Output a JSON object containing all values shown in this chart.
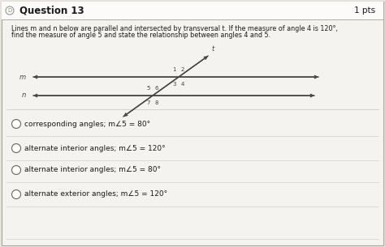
{
  "title": "Question 13",
  "pts": "1 pts",
  "bg_color": "#e8e4dc",
  "box_color": "#f5f3ef",
  "header_color": "#ffffff",
  "problem_text_line1": "Lines m and n below are parallel and intersected by transversal t. If the measure of angle 4 is 120°,",
  "problem_text_line2": "find the measure of angle 5 and state the relationship between angles 4 and 5.",
  "line_m_label": "m",
  "line_n_label": "n",
  "transversal_label": "t",
  "options": [
    "corresponding angles; m∠5 = 80°",
    "alternate interior angles; m∠5 = 120°",
    "alternate interior angles; m∠5 = 80°",
    "alternate exterior angles; m∠5 = 120°"
  ],
  "line_color": "#444444",
  "text_color": "#1a1a1a",
  "separator_color": "#c8c4bc",
  "header_sep_color": "#b0aca4"
}
